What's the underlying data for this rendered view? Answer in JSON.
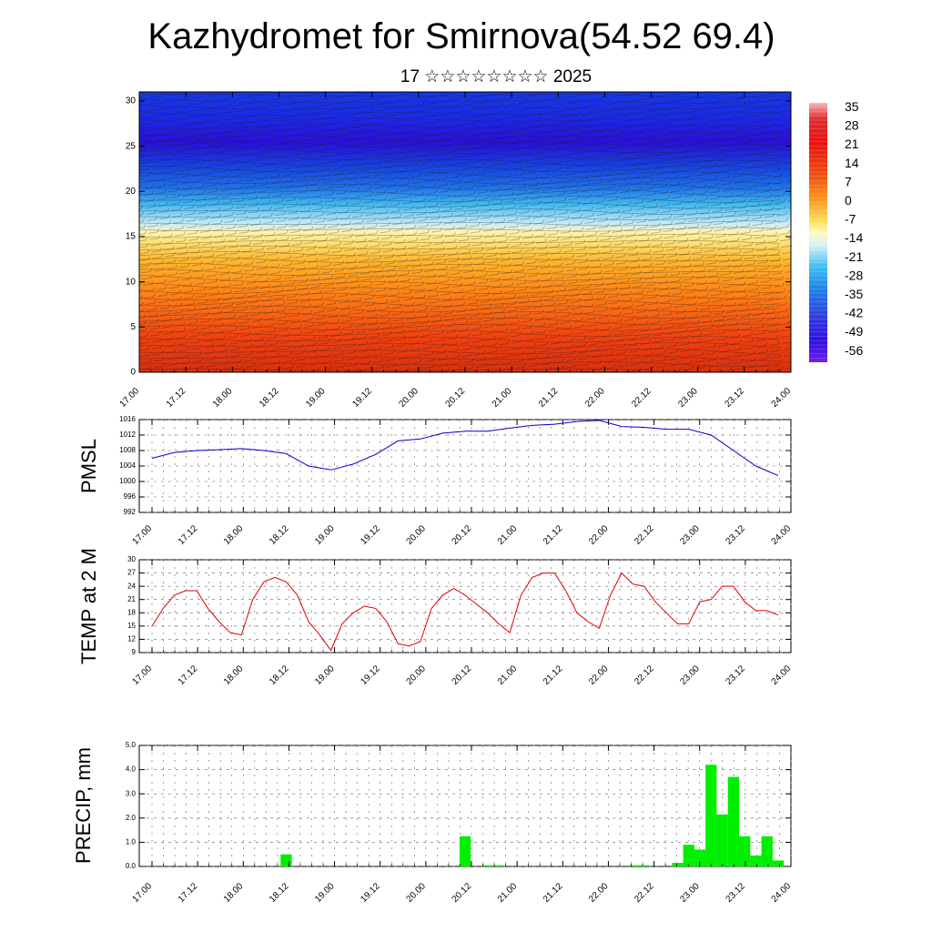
{
  "title": "Kazhydromet for Smirnova(54.52 69.4)",
  "subtitle": "17 ☆☆☆☆☆☆☆☆ 2025",
  "time_labels": [
    "17.00",
    "17.12",
    "18.00",
    "18.12",
    "19.00",
    "19.12",
    "20.00",
    "20.12",
    "21.00",
    "21.12",
    "22.00",
    "22.12",
    "23.00",
    "23.12",
    "24.00"
  ],
  "colorbar": {
    "labels": [
      "35",
      "28",
      "21",
      "14",
      "7",
      "0",
      "-7",
      "-14",
      "-21",
      "-28",
      "-35",
      "-42",
      "-49",
      "-56"
    ]
  },
  "chart_data": [
    {
      "type": "heatmap",
      "name": "cross-section",
      "y_ticks": [
        "0",
        "5",
        "10",
        "15",
        "20",
        "25",
        "30"
      ],
      "ylim": [
        0,
        31
      ],
      "x_range": [
        "17.00",
        "24.00"
      ],
      "value_range": [
        -60,
        38
      ],
      "note_levels": {
        "0": 30,
        "5": 22,
        "10": 14,
        "15": -10,
        "20": -35,
        "25": -56,
        "30": -52
      }
    },
    {
      "type": "line",
      "name": "pmsl",
      "ylabel": "PMSL",
      "y_ticks": [
        "992",
        "996",
        "1000",
        "1004",
        "1008",
        "1012",
        "1016"
      ],
      "ylim": [
        992,
        1016
      ],
      "color": "#0000cc",
      "x": [
        0,
        0.25,
        0.5,
        0.75,
        1,
        1.25,
        1.5,
        1.75,
        2,
        2.25,
        2.5,
        2.75,
        3,
        3.25,
        3.5,
        3.75,
        4,
        4.25,
        4.5,
        4.75,
        5,
        5.25,
        5.5,
        5.75,
        6,
        6.25,
        6.5,
        6.75,
        7
      ],
      "values": [
        1006,
        1007.5,
        1008,
        1008.2,
        1008.5,
        1008,
        1007.2,
        1004,
        1003,
        1004.5,
        1007,
        1010.5,
        1011,
        1012.5,
        1013,
        1013,
        1013.8,
        1014.5,
        1014.8,
        1015.5,
        1015.8,
        1014.2,
        1014,
        1013.5,
        1013.5,
        1012,
        1008,
        1004,
        1001.5
      ]
    },
    {
      "type": "line",
      "name": "temp-2m",
      "ylabel": "TEMP at 2 M",
      "y_ticks": [
        "9",
        "12",
        "15",
        "18",
        "21",
        "24",
        "27",
        "30"
      ],
      "ylim": [
        9,
        30
      ],
      "color": "#dd0000",
      "x": [
        0,
        0.125,
        0.25,
        0.375,
        0.5,
        0.625,
        0.75,
        0.875,
        1,
        1.125,
        1.25,
        1.375,
        1.5,
        1.625,
        1.75,
        1.875,
        2,
        2.125,
        2.25,
        2.375,
        2.5,
        2.625,
        2.75,
        2.875,
        3,
        3.125,
        3.25,
        3.375,
        3.5,
        3.625,
        3.75,
        3.875,
        4,
        4.125,
        4.25,
        4.375,
        4.5,
        4.625,
        4.75,
        4.875,
        5,
        5.125,
        5.25,
        5.375,
        5.5,
        5.625,
        5.75,
        5.875,
        6,
        6.125,
        6.25,
        6.375,
        6.5,
        6.625,
        6.75,
        6.875,
        7
      ],
      "values": [
        15,
        19,
        22,
        23,
        23,
        19,
        16,
        13.5,
        13,
        21,
        25,
        26,
        25,
        22,
        16,
        13,
        9.5,
        15.5,
        18,
        19.5,
        19,
        16,
        11,
        10.5,
        11.5,
        19,
        22,
        23.5,
        22,
        20,
        18,
        15.5,
        13.5,
        22,
        26,
        27,
        27,
        23,
        18,
        16,
        14.5,
        22,
        27,
        24.5,
        24,
        20.5,
        18,
        15.5,
        15.5,
        20.5,
        21,
        24,
        24,
        20.5,
        18.5,
        18.5,
        17.5
      ]
    },
    {
      "type": "bar",
      "name": "precip",
      "ylabel": "PRECIP, mm",
      "y_ticks": [
        "0.0",
        "1.0",
        "2.0",
        "3.0",
        "4.0",
        "5.0"
      ],
      "ylim": [
        0,
        5
      ],
      "color": "#00ee00",
      "bars": [
        {
          "x": 1.5,
          "value": 0.5
        },
        {
          "x": 3.5,
          "value": 1.25
        },
        {
          "x": 3.75,
          "value": 0.05
        },
        {
          "x": 3.875,
          "value": 0.05
        },
        {
          "x": 5.375,
          "value": 0.05
        },
        {
          "x": 5.5,
          "value": 0.05
        },
        {
          "x": 5.875,
          "value": 0.15
        },
        {
          "x": 6.0,
          "value": 0.9
        },
        {
          "x": 6.125,
          "value": 0.7
        },
        {
          "x": 6.25,
          "value": 4.2
        },
        {
          "x": 6.375,
          "value": 2.15
        },
        {
          "x": 6.5,
          "value": 3.7
        },
        {
          "x": 6.625,
          "value": 1.25
        },
        {
          "x": 6.75,
          "value": 0.45
        },
        {
          "x": 6.875,
          "value": 1.25
        },
        {
          "x": 7.0,
          "value": 0.25
        }
      ]
    }
  ]
}
